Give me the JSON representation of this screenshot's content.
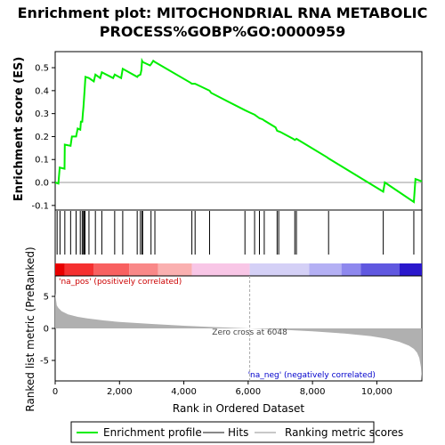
{
  "chart_data": {
    "type": "line",
    "title_line1": "Enrichment plot: MITOCHONDRIAL RNA METABOLIC",
    "title_line2": "PROCESS%GOBP%GO:0000959",
    "es_panel": {
      "ylabel": "Enrichment score (ES)",
      "ylim": [
        -0.12,
        0.57
      ],
      "yticks": [
        -0.1,
        0.0,
        0.1,
        0.2,
        0.3,
        0.4,
        0.5
      ],
      "ytick_labels": [
        "-0.1",
        "0.0",
        "0.1",
        "0.2",
        "0.3",
        "0.4",
        "0.5"
      ],
      "series": [
        {
          "name": "Enrichment profile",
          "color": "#00ee00",
          "x": [
            0,
            100,
            140,
            290,
            300,
            480,
            520,
            650,
            700,
            780,
            800,
            840,
            860,
            880,
            900,
            920,
            940,
            1050,
            1200,
            1250,
            1400,
            1450,
            1800,
            1850,
            2050,
            2100,
            2550,
            2580,
            2650,
            2680,
            2700,
            2720,
            2950,
            2980,
            3050,
            3100,
            4200,
            4250,
            4350,
            4800,
            4850,
            5900,
            6050,
            6200,
            6300,
            6350,
            6450,
            6500,
            6850,
            6900,
            7000,
            7400,
            7450,
            7500,
            8450,
            8500,
            10200,
            10250,
            11150,
            11200,
            11400
          ],
          "y": [
            0.0,
            -0.005,
            0.065,
            0.06,
            0.165,
            0.16,
            0.2,
            0.2,
            0.235,
            0.23,
            0.265,
            0.265,
            0.3,
            0.33,
            0.37,
            0.41,
            0.46,
            0.455,
            0.44,
            0.47,
            0.455,
            0.48,
            0.455,
            0.47,
            0.455,
            0.495,
            0.46,
            0.465,
            0.47,
            0.49,
            0.53,
            0.525,
            0.51,
            0.515,
            0.53,
            0.525,
            0.435,
            0.43,
            0.43,
            0.4,
            0.39,
            0.315,
            0.305,
            0.295,
            0.285,
            0.28,
            0.275,
            0.27,
            0.24,
            0.225,
            0.22,
            0.19,
            0.185,
            0.19,
            0.11,
            0.105,
            -0.04,
            0.0,
            -0.085,
            0.015,
            0.005
          ]
        }
      ],
      "zero_line": 0.0
    },
    "hits_panel": {
      "hit_positions": [
        60,
        150,
        300,
        480,
        650,
        780,
        840,
        880,
        900,
        930,
        1050,
        1250,
        1450,
        1850,
        2100,
        2550,
        2650,
        2700,
        2720,
        2980,
        3100,
        4250,
        4350,
        4800,
        5900,
        6200,
        6350,
        6500,
        6900,
        6950,
        7450,
        7500,
        8500,
        10200,
        11150
      ],
      "hit_color": "#000000"
    },
    "ranked_panel": {
      "ylabel": "Ranked list metric (PreRanked)",
      "xlabel": "Rank in Ordered Dataset",
      "ylim": [
        -8.2,
        8.2
      ],
      "yticks": [
        -5,
        0,
        5
      ],
      "ytick_labels": [
        "-5",
        "0",
        "5"
      ],
      "xlim": [
        0,
        11400
      ],
      "xticks": [
        0,
        2000,
        4000,
        6000,
        8000,
        10000
      ],
      "xtick_labels": [
        "0",
        "2,000",
        "4,000",
        "6,000",
        "8,000",
        "10,000"
      ],
      "fill_color": "#b0b0b0",
      "metric_curve": {
        "x": [
          0,
          50,
          100,
          200,
          400,
          700,
          1000,
          1500,
          2000,
          3000,
          4000,
          5000,
          6048,
          7000,
          8000,
          9000,
          9800,
          10300,
          10700,
          11000,
          11150,
          11250,
          11320,
          11370,
          11400
        ],
        "y": [
          5.5,
          3.6,
          3.2,
          2.7,
          2.2,
          1.8,
          1.55,
          1.25,
          1.0,
          0.7,
          0.42,
          0.2,
          0.0,
          -0.2,
          -0.45,
          -0.8,
          -1.2,
          -1.6,
          -2.1,
          -2.7,
          -3.2,
          -3.8,
          -4.6,
          -6.0,
          -8.0
        ]
      },
      "zero_cross_label": "Zero cross at 6048",
      "zero_cross_x": 6048,
      "pos_label": "'na_pos' (positively correlated)",
      "neg_label": "'na_neg' (negatively correlated)",
      "pos_label_color": "#cc0000",
      "neg_label_color": "#0000cc"
    },
    "color_bar": {
      "segments": [
        {
          "x0": 0,
          "x1": 300,
          "color": "#e80000"
        },
        {
          "x0": 300,
          "x1": 1200,
          "color": "#f53030"
        },
        {
          "x0": 1200,
          "x1": 2300,
          "color": "#f86060"
        },
        {
          "x0": 2300,
          "x1": 3200,
          "color": "#f98888"
        },
        {
          "x0": 3200,
          "x1": 4250,
          "color": "#fab0b0"
        },
        {
          "x0": 4250,
          "x1": 6048,
          "color": "#f8c6e6"
        },
        {
          "x0": 6048,
          "x1": 7900,
          "color": "#d4d0f6"
        },
        {
          "x0": 7900,
          "x1": 8900,
          "color": "#b4b0f4"
        },
        {
          "x0": 8900,
          "x1": 9500,
          "color": "#8e88ee"
        },
        {
          "x0": 9500,
          "x1": 10700,
          "color": "#6058e0"
        },
        {
          "x0": 10700,
          "x1": 11400,
          "color": "#2a18cc"
        }
      ]
    },
    "legend": {
      "items": [
        {
          "label": "Enrichment profile",
          "color": "#00ee00"
        },
        {
          "label": "Hits",
          "color": "#888888"
        },
        {
          "label": "Ranking metric scores",
          "color": "#c8c8c8"
        }
      ]
    }
  }
}
